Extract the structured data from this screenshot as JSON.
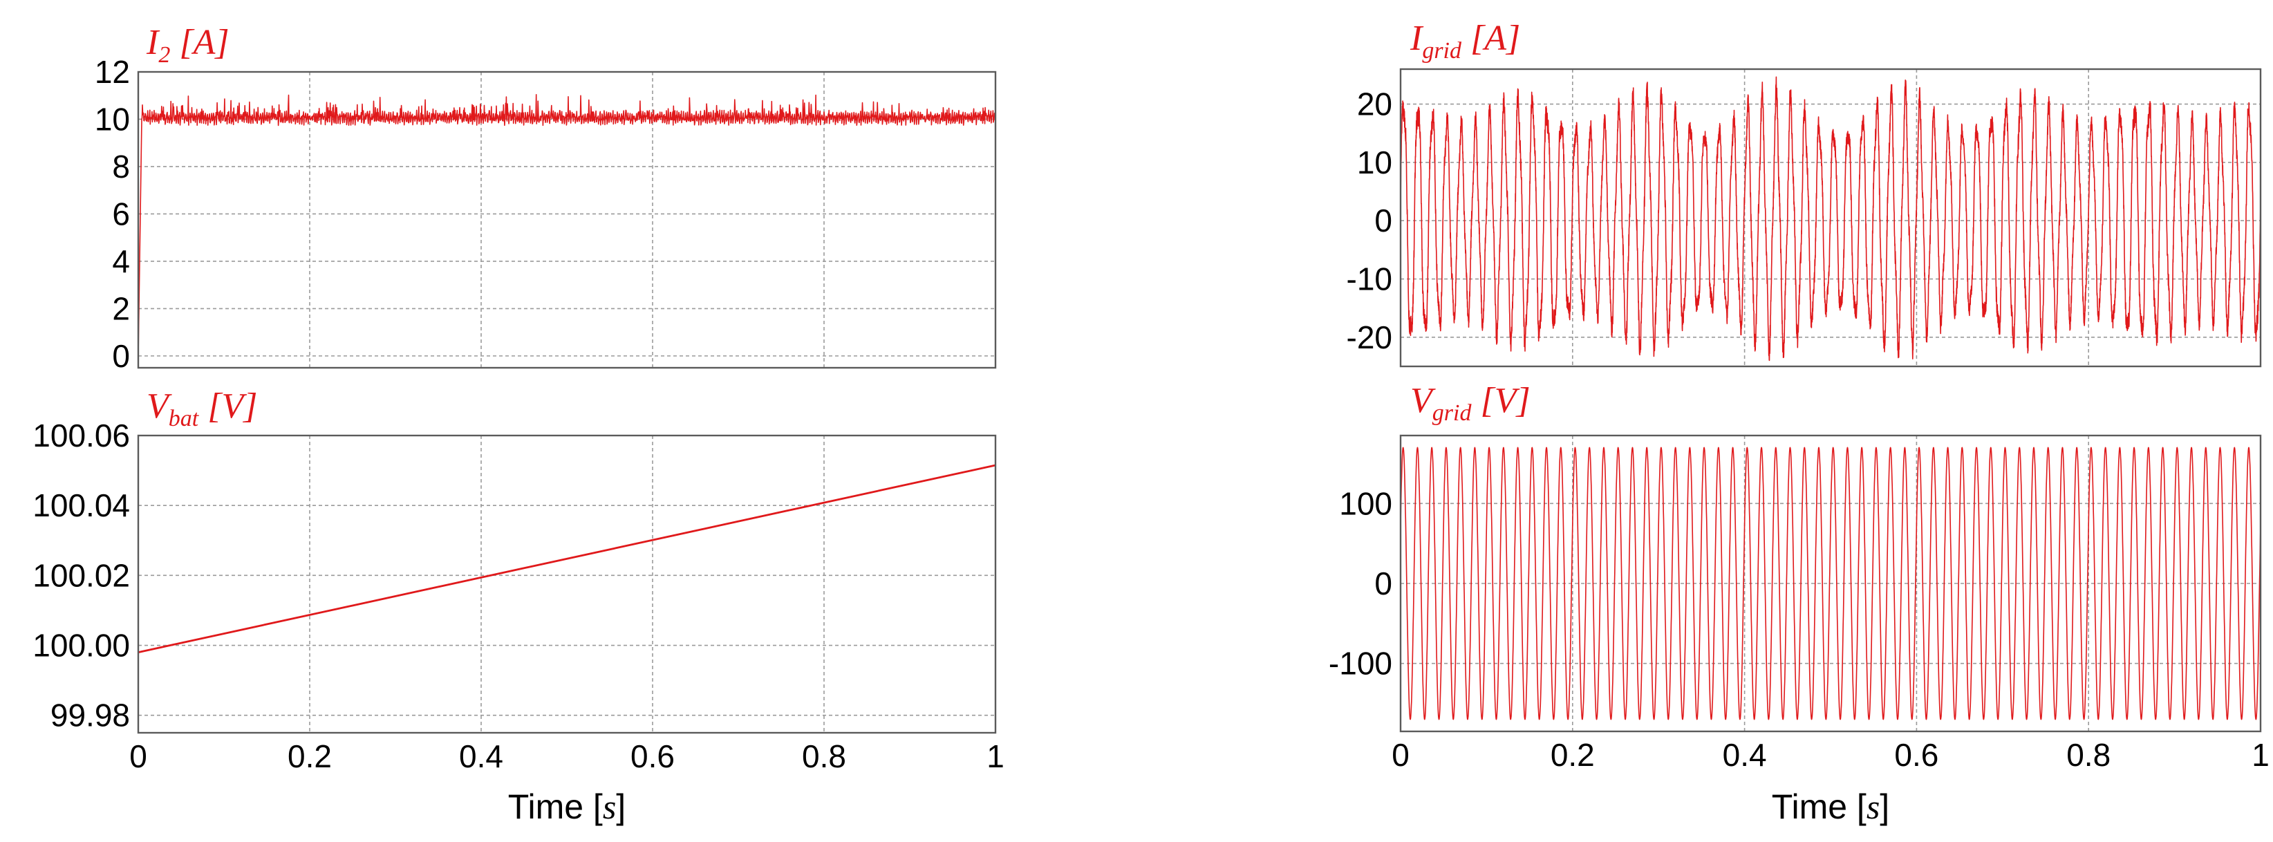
{
  "chart_data": [
    {
      "id": "i2",
      "type": "line",
      "title": {
        "main": "I",
        "sub": "2",
        "unit": " [A]"
      },
      "xlabel": "",
      "xlim": [
        0,
        1
      ],
      "ylim": [
        -0.5,
        12
      ],
      "x_ticks": [
        0,
        0.2,
        0.4,
        0.6,
        0.8,
        1
      ],
      "y_ticks": [
        0,
        2,
        4,
        6,
        8,
        10,
        12
      ],
      "y_tick_labels": [
        "0",
        "2",
        "4",
        "6",
        "8",
        "10",
        "12"
      ],
      "show_x_tick_labels": false,
      "grid": true,
      "color": "#e0191b",
      "series": [
        {
          "signal": "ripple",
          "x": [
            0,
            0.004,
            1
          ],
          "y": [
            0,
            10.1,
            10.1
          ],
          "ripple_amplitude": 0.45,
          "ripple_cycles": 420
        }
      ]
    },
    {
      "id": "vbat",
      "type": "line",
      "title": {
        "main": "V",
        "sub": "bat",
        "unit": " [V]"
      },
      "xlabel": "Time [s]",
      "xlim": [
        0,
        1
      ],
      "ylim": [
        99.975,
        100.06
      ],
      "x_ticks": [
        0,
        0.2,
        0.4,
        0.6,
        0.8,
        1
      ],
      "x_tick_labels": [
        "0",
        "0.2",
        "0.4",
        "0.6",
        "0.8",
        "1"
      ],
      "y_ticks": [
        99.98,
        100.0,
        100.02,
        100.04,
        100.06
      ],
      "y_tick_labels": [
        "99.98",
        "100.00",
        "100.02",
        "100.04",
        "100.06"
      ],
      "show_x_tick_labels": true,
      "grid": true,
      "color": "#e0191b",
      "series": [
        {
          "signal": "line",
          "x": [
            0,
            1
          ],
          "y": [
            99.998,
            100.0515
          ]
        }
      ]
    },
    {
      "id": "igrid",
      "type": "line",
      "title": {
        "main": "I",
        "sub": "grid",
        "unit": " [A]"
      },
      "xlabel": "",
      "xlim": [
        0,
        1
      ],
      "ylim": [
        -25,
        26
      ],
      "x_ticks": [
        0,
        0.2,
        0.4,
        0.6,
        0.8,
        1
      ],
      "y_ticks": [
        -20,
        -10,
        0,
        10,
        20
      ],
      "y_tick_labels": [
        "-20",
        "-10",
        "0",
        "10",
        "20"
      ],
      "show_x_tick_labels": false,
      "grid": true,
      "color": "#e0191b",
      "series": [
        {
          "signal": "sine",
          "amplitude": 20.5,
          "cycles": 60,
          "noise": 2.5,
          "phase": 0.2
        }
      ]
    },
    {
      "id": "vgrid",
      "type": "line",
      "title": {
        "main": "V",
        "sub": "grid",
        "unit": " [V]"
      },
      "xlabel": "Time [s]",
      "xlim": [
        0,
        1
      ],
      "ylim": [
        -185,
        185
      ],
      "x_ticks": [
        0,
        0.2,
        0.4,
        0.6,
        0.8,
        1
      ],
      "x_tick_labels": [
        "0",
        "0.2",
        "0.4",
        "0.6",
        "0.8",
        "1"
      ],
      "y_ticks": [
        -100,
        0,
        100
      ],
      "y_tick_labels": [
        "-100",
        "0",
        "100"
      ],
      "show_x_tick_labels": true,
      "grid": true,
      "color": "#e0191b",
      "series": [
        {
          "signal": "sine",
          "amplitude": 170,
          "cycles": 60,
          "noise": 0,
          "phase": 0.45
        }
      ]
    }
  ]
}
